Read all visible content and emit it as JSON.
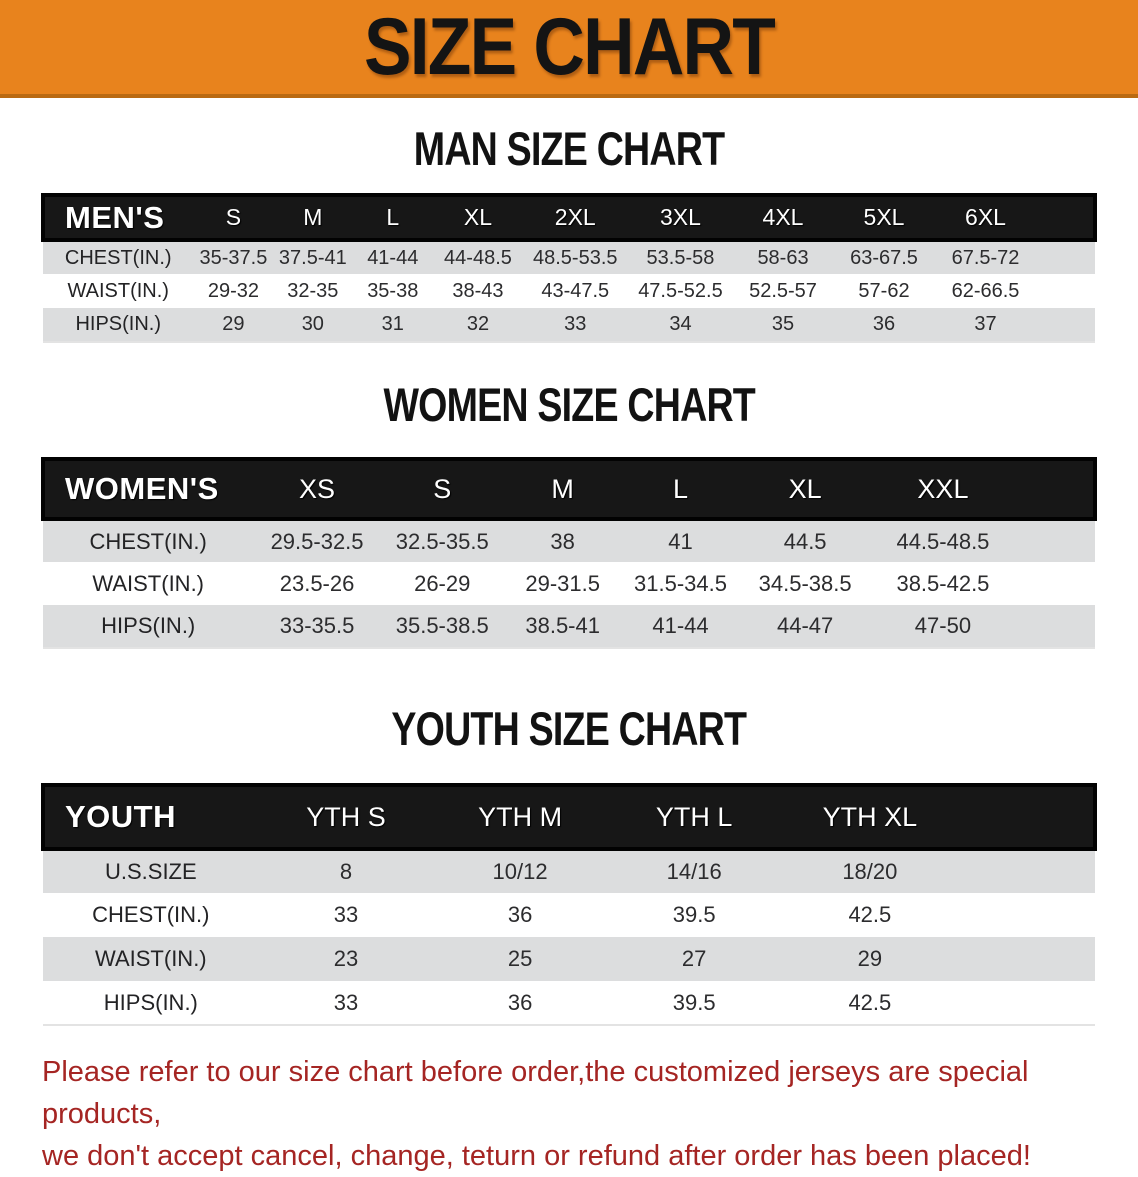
{
  "banner": {
    "title": "SIZE CHART",
    "bg_color": "#E8831D"
  },
  "sections": [
    {
      "id": "men",
      "heading": "MAN SIZE CHART",
      "table": {
        "label": "MEN'S",
        "columns": [
          "S",
          "M",
          "L",
          "XL",
          "2XL",
          "3XL",
          "4XL",
          "5XL",
          "6XL"
        ],
        "rows": [
          {
            "label": "CHEST(IN.)",
            "values": [
              "35-37.5",
              "37.5-41",
              "41-44",
              "44-48.5",
              "48.5-53.5",
              "53.5-58",
              "58-63",
              "63-67.5",
              "67.5-72"
            ]
          },
          {
            "label": "WAIST(IN.)",
            "values": [
              "29-32",
              "32-35",
              "35-38",
              "38-43",
              "43-47.5",
              "47.5-52.5",
              "52.5-57",
              "57-62",
              "62-66.5"
            ]
          },
          {
            "label": "HIPS(IN.)",
            "values": [
              "29",
              "30",
              "31",
              "32",
              "33",
              "34",
              "35",
              "36",
              "37"
            ]
          }
        ]
      }
    },
    {
      "id": "women",
      "heading": "WOMEN SIZE CHART",
      "table": {
        "label": "WOMEN'S",
        "columns": [
          "XS",
          "S",
          "M",
          "L",
          "XL",
          "XXL"
        ],
        "rows": [
          {
            "label": "CHEST(IN.)",
            "values": [
              "29.5-32.5",
              "32.5-35.5",
              "38",
              "41",
              "44.5",
              "44.5-48.5"
            ]
          },
          {
            "label": "WAIST(IN.)",
            "values": [
              "23.5-26",
              "26-29",
              "29-31.5",
              "31.5-34.5",
              "34.5-38.5",
              "38.5-42.5"
            ]
          },
          {
            "label": "HIPS(IN.)",
            "values": [
              "33-35.5",
              "35.5-38.5",
              "38.5-41",
              "41-44",
              "44-47",
              "47-50"
            ]
          }
        ]
      }
    },
    {
      "id": "youth",
      "heading": "YOUTH SIZE CHART",
      "table": {
        "label": "YOUTH",
        "columns": [
          "YTH S",
          "YTH M",
          "YTH L",
          "YTH XL"
        ],
        "rows": [
          {
            "label": "U.S.SIZE",
            "values": [
              "8",
              "10/12",
              "14/16",
              "18/20"
            ]
          },
          {
            "label": "CHEST(IN.)",
            "values": [
              "33",
              "36",
              "39.5",
              "42.5"
            ]
          },
          {
            "label": "WAIST(IN.)",
            "values": [
              "23",
              "25",
              "27",
              "29"
            ]
          },
          {
            "label": "HIPS(IN.)",
            "values": [
              "33",
              "36",
              "39.5",
              "42.5"
            ]
          }
        ]
      }
    }
  ],
  "footer": {
    "line1": "Please refer to our size chart before order,the customized jerseys are special products,",
    "line2": "we don't accept cancel, change, teturn or refund after order has been placed!",
    "color": "#A52523"
  }
}
